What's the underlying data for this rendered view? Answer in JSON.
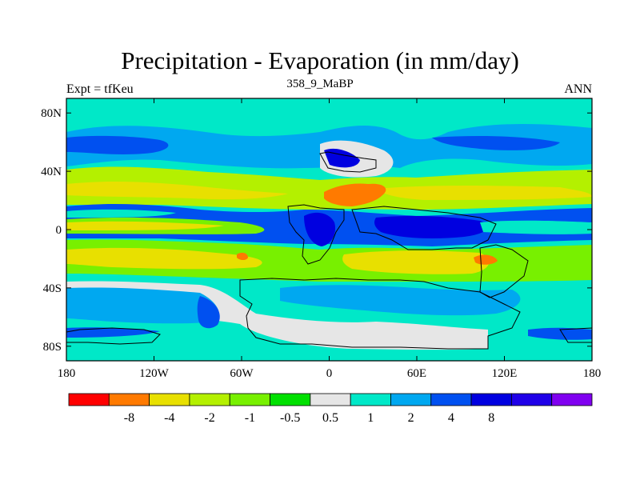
{
  "title": "Precipitation - Evaporation (in mm/day)",
  "subtitle": "358_9_MaBP",
  "left_label": "Expt = tfKeu",
  "right_label": "ANN",
  "map": {
    "type": "contour-map",
    "lon_range": [
      -180,
      180
    ],
    "lat_range": [
      -90,
      90
    ],
    "x_ticks": [
      {
        "value": -180,
        "label": "180"
      },
      {
        "value": -120,
        "label": "120W"
      },
      {
        "value": -60,
        "label": "60W"
      },
      {
        "value": 0,
        "label": "0"
      },
      {
        "value": 60,
        "label": "60E"
      },
      {
        "value": 120,
        "label": "120E"
      },
      {
        "value": 180,
        "label": "180"
      }
    ],
    "y_ticks": [
      {
        "value": 80,
        "label": "80N"
      },
      {
        "value": 40,
        "label": "40N"
      },
      {
        "value": 0,
        "label": "0"
      },
      {
        "value": -40,
        "label": "40S"
      },
      {
        "value": -80,
        "label": "80S"
      }
    ],
    "background_color": "#00e8c8"
  },
  "colorbar": {
    "colors": [
      "#ff0000",
      "#ff7a00",
      "#e8e000",
      "#b4f000",
      "#78f000",
      "#00e000",
      "#e6e6e6",
      "#00e8c8",
      "#00a8f0",
      "#0050f0",
      "#0000e0",
      "#2000e8",
      "#8000f0"
    ],
    "labels": [
      "-8",
      "-4",
      "-2",
      "-1",
      "-0.5",
      "0.5",
      "1",
      "2",
      "4",
      "8"
    ],
    "label_after_segment": [
      1,
      2,
      3,
      4,
      5,
      6,
      7,
      8,
      9,
      10
    ]
  }
}
